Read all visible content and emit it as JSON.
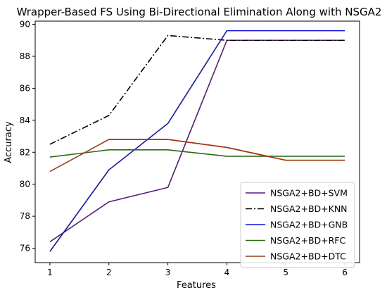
{
  "chart_data": {
    "type": "line",
    "title": "Wrapper-Based FS Using Bi-Directional Elimination Along with NSGA2",
    "xlabel": "Features",
    "ylabel": "Accuracy",
    "x": [
      1,
      2,
      3,
      4,
      5,
      6
    ],
    "x_ticks": [
      "1",
      "2",
      "3",
      "4",
      "5",
      "6"
    ],
    "y_ticks": [
      "76",
      "78",
      "80",
      "82",
      "84",
      "86",
      "88",
      "90"
    ],
    "xlim": [
      0.75,
      6.25
    ],
    "ylim": [
      75.1,
      90.2
    ],
    "grid": false,
    "legend_position": "lower right",
    "series": [
      {
        "name": "NSGA2+BD+SVM",
        "color": "#5a1a80",
        "dash": "solid",
        "values": [
          76.4,
          78.9,
          79.8,
          89.0,
          89.0,
          89.0
        ]
      },
      {
        "name": "NSGA2+BD+KNN",
        "color": "#000000",
        "dash": "dashdot",
        "values": [
          82.5,
          84.3,
          89.3,
          89.0,
          89.0,
          89.0
        ]
      },
      {
        "name": "NSGA2+BD+GNB",
        "color": "#1010e0",
        "dash": "solid",
        "values": [
          75.8,
          80.9,
          83.8,
          89.6,
          89.6,
          89.6
        ]
      },
      {
        "name": "NSGA2+BD+RFC",
        "color": "#2a6a10",
        "dash": "solid",
        "values": [
          81.7,
          82.15,
          82.15,
          81.75,
          81.75,
          81.75
        ]
      },
      {
        "name": "NSGA2+BD+DTC",
        "color": "#a03a1a",
        "dash": "solid",
        "values": [
          80.8,
          82.8,
          82.8,
          82.3,
          81.5,
          81.5
        ]
      }
    ],
    "extra_lines": [
      {
        "color": "#ff1a1a",
        "dash": "solid",
        "x": [
          2,
          3,
          4,
          5,
          6
        ],
        "values": [
          82.8,
          82.8,
          82.3,
          81.5,
          81.5
        ]
      }
    ]
  }
}
